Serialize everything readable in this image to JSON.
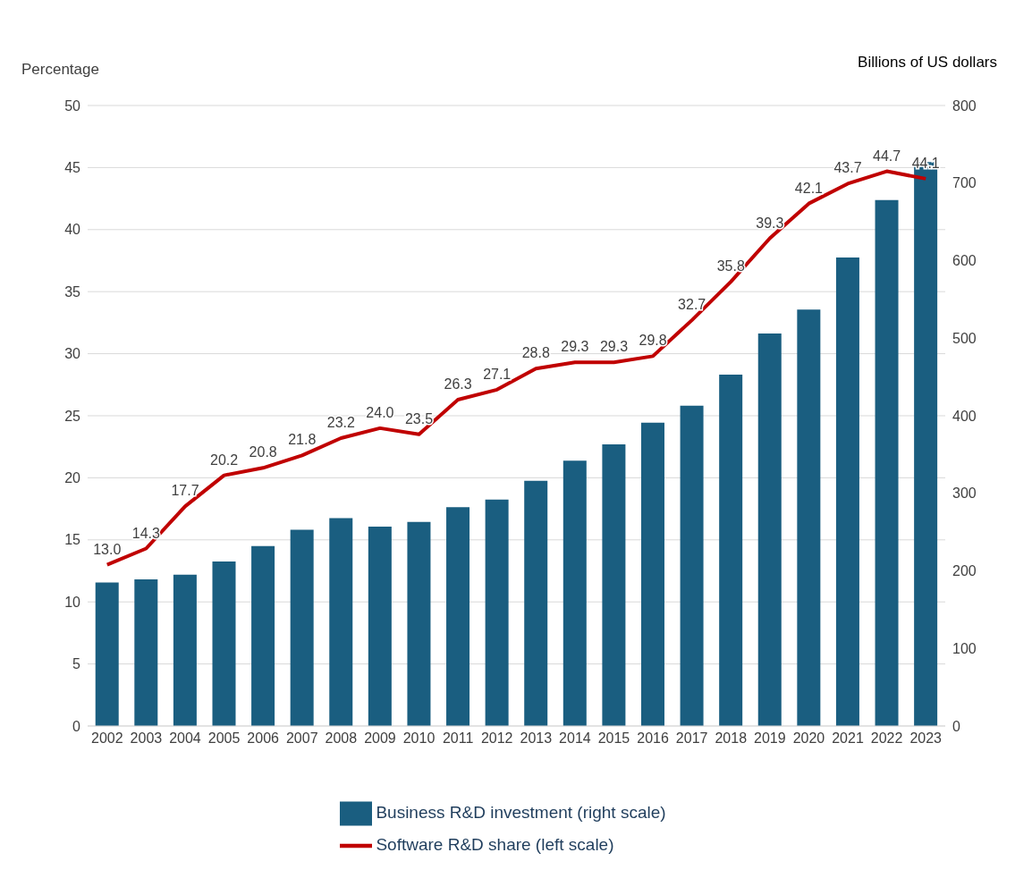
{
  "chart_data": {
    "type": "bar",
    "categories": [
      "2002",
      "2003",
      "2004",
      "2005",
      "2006",
      "2007",
      "2008",
      "2009",
      "2010",
      "2011",
      "2012",
      "2013",
      "2014",
      "2015",
      "2016",
      "2017",
      "2018",
      "2019",
      "2020",
      "2021",
      "2022",
      "2023"
    ],
    "series": [
      {
        "name": "Business R&D investment (right scale)",
        "axis": "y2",
        "color": "#1a5e80",
        "values": [
          185,
          189,
          195,
          212,
          232,
          253,
          268,
          257,
          263,
          282,
          292,
          316,
          342,
          363,
          391,
          413,
          453,
          506,
          537,
          604,
          678,
          727
        ]
      },
      {
        "name": "Software R&D share (left scale)",
        "type": "line",
        "color": "#c00000",
        "values": [
          13.0,
          14.3,
          17.7,
          20.2,
          20.8,
          21.8,
          23.2,
          24.0,
          23.5,
          26.3,
          27.1,
          28.8,
          29.3,
          29.3,
          29.8,
          32.7,
          35.8,
          39.3,
          42.1,
          43.7,
          44.7,
          44.1
        ],
        "value_labels": [
          "13.0",
          "14.3",
          "17.7",
          "20.2",
          "20.8",
          "21.8",
          "23.2",
          "24.0",
          "23.5",
          "26.3",
          "27.1",
          "28.8",
          "29.3",
          "29.3",
          "29.8",
          "32.7",
          "35.8",
          "39.3",
          "42.1",
          "43.7",
          "44.7",
          "44.1"
        ]
      }
    ],
    "ylabel": "Percentage",
    "y2label": "Billions of US dollars",
    "ylim": [
      0,
      50
    ],
    "yticks": [
      0,
      5,
      10,
      15,
      20,
      25,
      30,
      35,
      40,
      45,
      50
    ],
    "y2lim": [
      0,
      800
    ],
    "y2ticks": [
      0,
      100,
      200,
      300,
      400,
      500,
      600,
      700,
      800
    ],
    "grid": "y",
    "legend": "bottom",
    "marker": "none",
    "line_style": "solid"
  }
}
